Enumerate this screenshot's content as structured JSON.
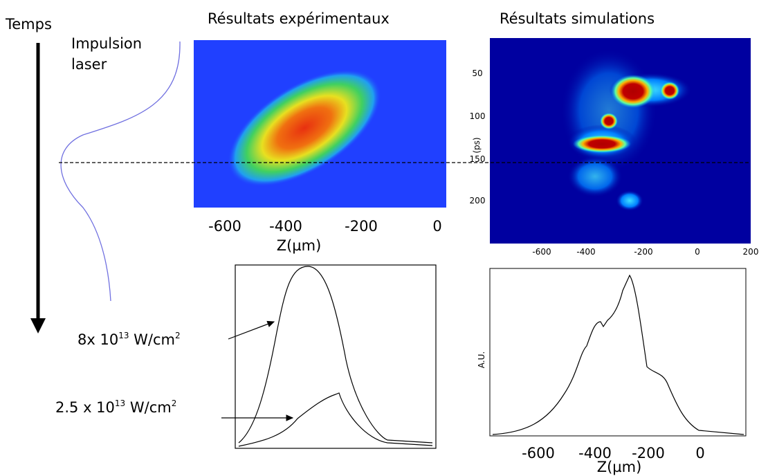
{
  "header": {
    "time_label": "Temps",
    "pulse_label": [
      "Impulsion",
      "laser"
    ],
    "exp_title": "Résultats expérimentaux",
    "sim_title": "Résultats simulations"
  },
  "exp_image": {
    "xticks": [
      "-600",
      "-400",
      "-200",
      "0"
    ],
    "xlabel": "Z(µm)"
  },
  "sim_image": {
    "yticks": [
      "50",
      "100",
      "150",
      "200"
    ],
    "ylabel": "(ps)",
    "xticks": [
      "-600",
      "-400",
      "-200",
      "0",
      "200"
    ]
  },
  "exp_profile": {
    "labels": [
      {
        "base": "8x 10",
        "exp": "13",
        "unit": " W/cm",
        "unit_exp": "2"
      },
      {
        "base": "2.5 x 10",
        "exp": "13",
        "unit": " W/cm",
        "unit_exp": "2"
      }
    ]
  },
  "sim_profile": {
    "ylabel": "A.U.",
    "xticks": [
      "-600",
      "-400",
      "-200",
      "0"
    ],
    "xlabel": "Z(µm)"
  }
}
